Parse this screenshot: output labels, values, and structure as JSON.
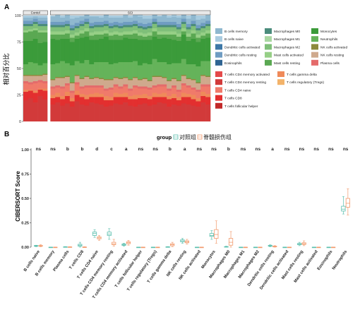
{
  "panel_a": {
    "label": "A",
    "ylabel": "相对百分比",
    "group_labels": [
      "Contol",
      "SCI"
    ],
    "legend_top": [
      {
        "name": "B cells memory",
        "color": "#8fb8cf"
      },
      {
        "name": "B cells naive",
        "color": "#a9cce0"
      },
      {
        "name": "Dendritic cells activated",
        "color": "#3d77a6"
      },
      {
        "name": "Dendritic cells resting",
        "color": "#6f9cc2"
      },
      {
        "name": "Eosinophils",
        "color": "#2f6492"
      },
      {
        "name": "Macrophages M0",
        "color": "#4b8c7c"
      },
      {
        "name": "Macrophages M1",
        "color": "#a9d7a1"
      },
      {
        "name": "Macrophages M2",
        "color": "#7fbf79"
      },
      {
        "name": "Mast cells activated",
        "color": "#96cf86"
      },
      {
        "name": "Mast cells resting",
        "color": "#5aa852"
      },
      {
        "name": "Monocytes",
        "color": "#3b9b3a"
      },
      {
        "name": "Neutrophils",
        "color": "#65b35a"
      },
      {
        "name": "NK cells activated",
        "color": "#8c8a3c"
      },
      {
        "name": "NK cells resting",
        "color": "#cfa98d"
      },
      {
        "name": "Plasma cells",
        "color": "#e46b6b"
      }
    ],
    "legend_bottom": [
      {
        "name": "T cells CD4 memory activated",
        "color": "#e44a4a"
      },
      {
        "name": "T cells CD4 memory resting",
        "color": "#d23a3a"
      },
      {
        "name": "T cells CD4 naive",
        "color": "#f07a6a"
      },
      {
        "name": "T cells CD8",
        "color": "#e32f2f"
      },
      {
        "name": "T cells follicular helper",
        "color": "#c22a2a"
      },
      {
        "name": "T cells gamma delta",
        "color": "#ef8a5a"
      },
      {
        "name": "T cells regulatory (Tregs)",
        "color": "#f3b36a"
      }
    ]
  },
  "chart_data": [
    {
      "type": "bar",
      "stacked": true,
      "ylim": [
        0,
        100
      ],
      "yticks": [
        "0",
        "25",
        "50",
        "75",
        "100"
      ],
      "group_sizes": [
        5,
        33
      ],
      "layers": [
        {
          "name": "T cells CD4 memory resting",
          "color": "#d23a3a",
          "values": [
            20,
            22,
            18,
            24,
            21,
            16,
            18,
            15,
            17,
            14,
            19,
            16,
            15,
            18,
            17,
            16,
            14,
            15,
            17,
            16,
            18,
            15,
            14,
            16,
            17,
            15,
            16,
            18,
            17,
            14,
            16,
            15,
            17,
            16,
            15,
            14,
            18,
            16
          ]
        },
        {
          "name": "T cells CD8",
          "color": "#e32f2f",
          "values": [
            8,
            7,
            9,
            6,
            8,
            6,
            5,
            6,
            7,
            5,
            6,
            7,
            6,
            5,
            6,
            7,
            6,
            5,
            6,
            7,
            5,
            6,
            7,
            6,
            5,
            6,
            7,
            5,
            6,
            7,
            6,
            5,
            6,
            7,
            6,
            5,
            6,
            7
          ]
        },
        {
          "name": "T cells gamma delta",
          "color": "#ef8a5a",
          "values": [
            2,
            1,
            2,
            1,
            2,
            3,
            4,
            3,
            4,
            3,
            4,
            3,
            4,
            3,
            4,
            3,
            4,
            3,
            4,
            3,
            4,
            3,
            4,
            3,
            4,
            3,
            4,
            3,
            4,
            3,
            4,
            3,
            4,
            3,
            4,
            3,
            4,
            3
          ]
        },
        {
          "name": "T cells CD4 naive",
          "color": "#f07a6a",
          "values": [
            6,
            5,
            7,
            6,
            5,
            6,
            5,
            7,
            6,
            5,
            6,
            5,
            7,
            6,
            5,
            6,
            5,
            7,
            6,
            5,
            6,
            5,
            7,
            6,
            5,
            6,
            5,
            7,
            6,
            5,
            6,
            5,
            7,
            6,
            5,
            6,
            5,
            7
          ]
        },
        {
          "name": "Plasma cells",
          "color": "#e46b6b",
          "values": [
            2,
            2,
            2,
            2,
            2,
            2,
            2,
            2,
            2,
            2,
            2,
            2,
            2,
            2,
            2,
            2,
            2,
            2,
            2,
            2,
            2,
            2,
            2,
            2,
            2,
            2,
            2,
            2,
            2,
            2,
            2,
            2,
            2,
            2,
            2,
            2,
            2,
            2
          ]
        },
        {
          "name": "NK cells resting",
          "color": "#cfa98d",
          "values": [
            5,
            6,
            5,
            4,
            6,
            6,
            7,
            8,
            6,
            7,
            6,
            7,
            8,
            6,
            7,
            6,
            8,
            7,
            6,
            7,
            6,
            8,
            7,
            6,
            7,
            6,
            8,
            7,
            6,
            7,
            6,
            8,
            7,
            6,
            7,
            6,
            8,
            7
          ]
        },
        {
          "name": "NK cells activated",
          "color": "#8c8a3c",
          "values": [
            1,
            1,
            1,
            1,
            1,
            1,
            1,
            1,
            1,
            1,
            1,
            1,
            1,
            1,
            1,
            1,
            1,
            1,
            1,
            1,
            1,
            1,
            1,
            1,
            1,
            1,
            1,
            1,
            1,
            1,
            1,
            1,
            1,
            1,
            1,
            1,
            1,
            1
          ]
        },
        {
          "name": "Neutrophils",
          "color": "#65b35a",
          "values": [
            10,
            12,
            11,
            9,
            10,
            14,
            13,
            15,
            12,
            16,
            13,
            14,
            15,
            13,
            14,
            15,
            16,
            14,
            13,
            15,
            14,
            16,
            15,
            13,
            14,
            15,
            16,
            13,
            14,
            15,
            14,
            16,
            15,
            13,
            14,
            15,
            13,
            14
          ]
        },
        {
          "name": "Monocytes",
          "color": "#3b9b3a",
          "values": [
            22,
            20,
            23,
            21,
            20,
            24,
            22,
            21,
            23,
            22,
            21,
            24,
            22,
            23,
            21,
            22,
            24,
            23,
            22,
            21,
            23,
            22,
            21,
            24,
            22,
            23,
            21,
            22,
            23,
            24,
            22,
            21,
            23,
            22,
            24,
            23,
            21,
            22
          ]
        },
        {
          "name": "Mast cells resting",
          "color": "#5aa852",
          "values": [
            8,
            9,
            8,
            10,
            9,
            4,
            5,
            4,
            5,
            4,
            3,
            4,
            5,
            4,
            5,
            4,
            3,
            4,
            5,
            4,
            3,
            4,
            5,
            4,
            3,
            4,
            5,
            4,
            3,
            4,
            5,
            4,
            3,
            4,
            5,
            4,
            3,
            4
          ]
        },
        {
          "name": "Mast cells activated",
          "color": "#96cf86",
          "values": [
            2,
            2,
            2,
            2,
            2,
            3,
            3,
            3,
            3,
            3,
            3,
            3,
            3,
            3,
            3,
            3,
            3,
            3,
            3,
            3,
            3,
            3,
            3,
            3,
            3,
            3,
            3,
            3,
            3,
            3,
            3,
            3,
            3,
            3,
            3,
            3,
            3,
            3
          ]
        },
        {
          "name": "Macrophages M2",
          "color": "#7fbf79",
          "values": [
            4,
            3,
            4,
            4,
            4,
            4,
            4,
            4,
            4,
            4,
            4,
            4,
            4,
            4,
            4,
            4,
            4,
            4,
            4,
            4,
            4,
            4,
            4,
            4,
            4,
            4,
            4,
            4,
            4,
            4,
            4,
            4,
            4,
            4,
            4,
            4,
            4,
            4
          ]
        },
        {
          "name": "Macrophages M0",
          "color": "#4b8c7c",
          "values": [
            2,
            2,
            2,
            2,
            2,
            2,
            2,
            2,
            2,
            2,
            2,
            2,
            2,
            2,
            2,
            2,
            2,
            2,
            2,
            2,
            2,
            2,
            2,
            2,
            2,
            2,
            2,
            2,
            2,
            2,
            2,
            2,
            2,
            2,
            2,
            2,
            2,
            2
          ]
        },
        {
          "name": "Dendritic cells resting",
          "color": "#6f9cc2",
          "values": [
            3,
            3,
            3,
            3,
            3,
            3,
            3,
            3,
            3,
            3,
            3,
            3,
            3,
            3,
            3,
            3,
            3,
            3,
            3,
            3,
            3,
            3,
            3,
            3,
            3,
            3,
            3,
            3,
            3,
            3,
            3,
            3,
            3,
            3,
            3,
            3,
            3,
            3
          ]
        },
        {
          "name": "B cells memory",
          "color": "#8fb8cf",
          "values": [
            3,
            3,
            2,
            3,
            3,
            5,
            6,
            4,
            5,
            6,
            5,
            4,
            5,
            6,
            5,
            4,
            6,
            5,
            4,
            5,
            6,
            4,
            5,
            6,
            5,
            4,
            6,
            5,
            6,
            4,
            5,
            6,
            4,
            5,
            6,
            5,
            4,
            5
          ]
        },
        {
          "name": "B cells naive",
          "color": "#a9cce0",
          "values": [
            2,
            2,
            1,
            2,
            2,
            1,
            1,
            2,
            1,
            1,
            2,
            1,
            2,
            1,
            1,
            2,
            1,
            2,
            1,
            1,
            2,
            1,
            1,
            2,
            1,
            2,
            1,
            1,
            2,
            1,
            2,
            1,
            1,
            2,
            1,
            2,
            1,
            1
          ]
        }
      ]
    },
    {
      "type": "box",
      "label": "B",
      "ylabel": "CIBERSORT Score",
      "ylim": [
        0,
        1
      ],
      "yticks": [
        "0.00",
        "0.25",
        "0.50",
        "0.75",
        "1.00"
      ],
      "legend_title": "group",
      "series": [
        {
          "name": "对照组",
          "color": "#5bbfae"
        },
        {
          "name": "脊髓损伤组",
          "color": "#f29a6c"
        }
      ],
      "categories": [
        "B cells naive",
        "B cells memory",
        "Plasma cells",
        "T cells CD8",
        "T cells CD4 naive",
        "T cells CD4 memory resting",
        "T cells CD4 memory activated",
        "T cells follicular helper",
        "T cells regulatory (Tregs)",
        "T cells gamma delta",
        "NK cells resting",
        "NK cells activated",
        "Monocytes",
        "Macrophages M0",
        "Macrophages M1",
        "Macrophages M2",
        "Dendritic cells resting",
        "Dendritic cells activated",
        "Mast cells resting",
        "Mast cells activated",
        "Eosinophils",
        "Neutrophils"
      ],
      "significance": [
        "ns",
        "ns",
        "b",
        "b",
        "d",
        "c",
        "a",
        "ns",
        "ns",
        "b",
        "a",
        "ns",
        "ns",
        "b",
        "ns",
        "ns",
        "a",
        "ns",
        "ns",
        "ns",
        "ns",
        "ns"
      ],
      "boxes": {
        "control": [
          [
            0.005,
            0.01,
            0.012,
            0.016,
            0.02
          ],
          [
            0,
            0,
            0,
            0,
            0
          ],
          [
            0,
            0,
            0.002,
            0.004,
            0.006
          ],
          [
            0,
            0.01,
            0.02,
            0.03,
            0.05
          ],
          [
            0.1,
            0.12,
            0.14,
            0.155,
            0.18
          ],
          [
            0.08,
            0.12,
            0.135,
            0.155,
            0.19
          ],
          [
            0.01,
            0.018,
            0.025,
            0.032,
            0.04
          ],
          [
            0,
            0,
            0,
            0,
            0
          ],
          [
            0,
            0,
            0,
            0,
            0
          ],
          [
            0,
            0,
            0.002,
            0.004,
            0.006
          ],
          [
            0.04,
            0.055,
            0.065,
            0.075,
            0.09
          ],
          [
            0,
            0,
            0,
            0,
            0
          ],
          [
            0.08,
            0.11,
            0.12,
            0.14,
            0.17
          ],
          [
            0,
            0,
            0.003,
            0.006,
            0.01
          ],
          [
            0,
            0,
            0,
            0,
            0
          ],
          [
            0,
            0,
            0,
            0,
            0
          ],
          [
            0.005,
            0.01,
            0.014,
            0.018,
            0.024
          ],
          [
            0,
            0,
            0,
            0,
            0
          ],
          [
            0.015,
            0.025,
            0.03,
            0.038,
            0.05
          ],
          [
            0,
            0,
            0,
            0,
            0
          ],
          [
            0,
            0,
            0,
            0,
            0
          ],
          [
            0.34,
            0.37,
            0.39,
            0.42,
            0.52
          ]
        ],
        "sci": [
          [
            0.005,
            0.01,
            0.013,
            0.017,
            0.025
          ],
          [
            0,
            0,
            0,
            0,
            0
          ],
          [
            0,
            0,
            0.001,
            0.003,
            0.005
          ],
          [
            0,
            0,
            0,
            0.002,
            0.004
          ],
          [
            0.07,
            0.085,
            0.095,
            0.105,
            0.12
          ],
          [
            0.01,
            0.025,
            0.035,
            0.05,
            0.08
          ],
          [
            0.02,
            0.035,
            0.045,
            0.055,
            0.07
          ],
          [
            0,
            0,
            0,
            0,
            0
          ],
          [
            0,
            0,
            0,
            0,
            0
          ],
          [
            0.005,
            0.015,
            0.025,
            0.035,
            0.05
          ],
          [
            0.03,
            0.045,
            0.055,
            0.065,
            0.08
          ],
          [
            0,
            0,
            0,
            0,
            0
          ],
          [
            0.04,
            0.09,
            0.13,
            0.18,
            0.27
          ],
          [
            0,
            0.02,
            0.05,
            0.09,
            0.16
          ],
          [
            0,
            0,
            0,
            0,
            0
          ],
          [
            0,
            0,
            0,
            0,
            0
          ],
          [
            0,
            0.003,
            0.006,
            0.01,
            0.016
          ],
          [
            0,
            0,
            0,
            0,
            0
          ],
          [
            0.015,
            0.028,
            0.035,
            0.045,
            0.065
          ],
          [
            0,
            0,
            0,
            0,
            0
          ],
          [
            0,
            0,
            0,
            0,
            0
          ],
          [
            0.33,
            0.41,
            0.45,
            0.5,
            0.6
          ]
        ]
      }
    }
  ]
}
